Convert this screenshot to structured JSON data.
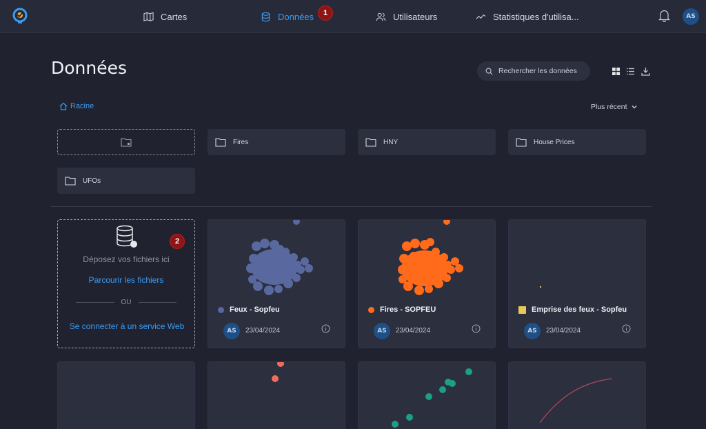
{
  "nav": {
    "items": [
      {
        "label": "Cartes",
        "icon": "map-icon"
      },
      {
        "label": "Données",
        "icon": "database-icon",
        "active": true
      },
      {
        "label": "Utilisateurs",
        "icon": "users-icon"
      },
      {
        "label": "Statistiques d'utilisa...",
        "icon": "chart-line-icon"
      }
    ],
    "user_initials": "AS",
    "accent_color": "#3b9cf3"
  },
  "badges": {
    "one": "1",
    "two": "2"
  },
  "header": {
    "title": "Données",
    "search_placeholder": "Rechercher les données"
  },
  "breadcrumb": {
    "root": "Racine"
  },
  "sort": {
    "label": "Plus récent"
  },
  "folders": [
    "Fires",
    "HNY",
    "House Prices",
    "UFOs"
  ],
  "dropzone": {
    "drop_text": "Déposez vos fichiers ici",
    "browse": "Parcourir les fichiers",
    "or": "OU",
    "connect": "Se connecter à un service Web"
  },
  "datasets": [
    {
      "title": "Feux - Sopfeu",
      "owner": "AS",
      "date": "23/04/2024",
      "color": "#5a68a0"
    },
    {
      "title": "Fires - SOPFEU",
      "owner": "AS",
      "date": "23/04/2024",
      "color": "#ff6b1a"
    },
    {
      "title": "Emprise des feux - Sopfeu",
      "owner": "AS",
      "date": "23/04/2024",
      "color": "#e8c85a"
    }
  ]
}
